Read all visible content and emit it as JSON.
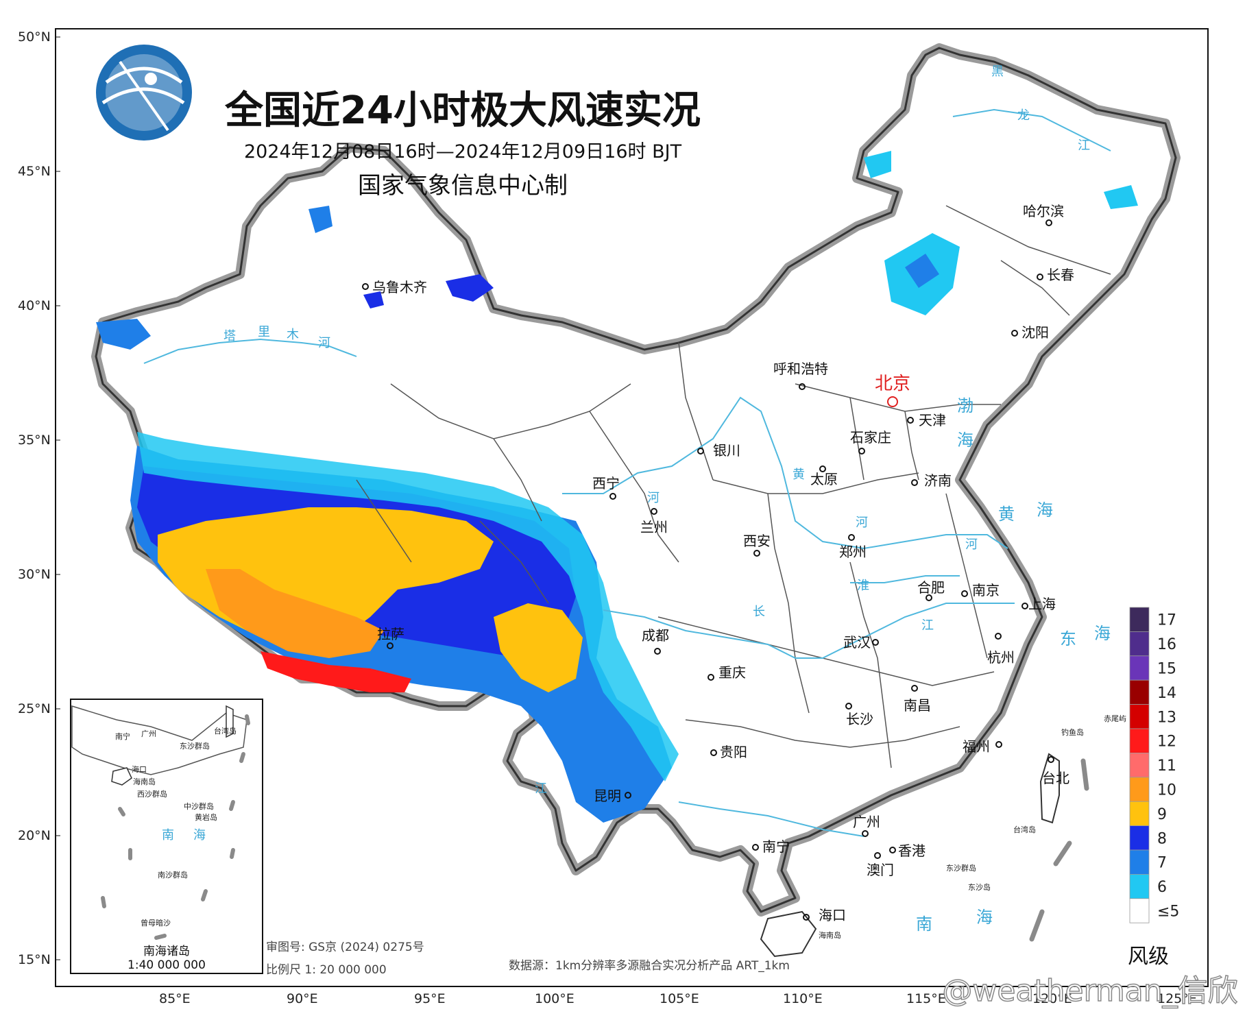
{
  "title": "全国近24小时极大风速实况",
  "subtitle": "2024年12月08日16时—2024年12月09日16时 BJT",
  "producer": "国家气象信息中心制",
  "latitude_ticks": [
    "50°N",
    "45°N",
    "40°N",
    "35°N",
    "30°N",
    "25°N",
    "20°N",
    "15°N"
  ],
  "longitude_ticks": [
    "85°E",
    "90°E",
    "95°E",
    "100°E",
    "105°E",
    "110°E",
    "115°E",
    "120°E",
    "125°E"
  ],
  "cities": [
    {
      "name": "乌鲁木齐",
      "id": "urumqi"
    },
    {
      "name": "哈尔滨",
      "id": "harbin"
    },
    {
      "name": "长春",
      "id": "changchun"
    },
    {
      "name": "沈阳",
      "id": "shenyang"
    },
    {
      "name": "呼和浩特",
      "id": "hohhot"
    },
    {
      "name": "北京",
      "id": "beijing"
    },
    {
      "name": "天津",
      "id": "tianjin"
    },
    {
      "name": "石家庄",
      "id": "shijiazhuang"
    },
    {
      "name": "银川",
      "id": "yinchuan"
    },
    {
      "name": "太原",
      "id": "taiyuan"
    },
    {
      "name": "济南",
      "id": "jinan"
    },
    {
      "name": "西宁",
      "id": "xining"
    },
    {
      "name": "兰州",
      "id": "lanzhou"
    },
    {
      "name": "西安",
      "id": "xian"
    },
    {
      "name": "郑州",
      "id": "zhengzhou"
    },
    {
      "name": "合肥",
      "id": "hefei"
    },
    {
      "name": "南京",
      "id": "nanjing"
    },
    {
      "name": "上海",
      "id": "shanghai"
    },
    {
      "name": "拉萨",
      "id": "lhasa"
    },
    {
      "name": "成都",
      "id": "chengdu"
    },
    {
      "name": "武汉",
      "id": "wuhan"
    },
    {
      "name": "杭州",
      "id": "hangzhou"
    },
    {
      "name": "重庆",
      "id": "chongqing"
    },
    {
      "name": "长沙",
      "id": "changsha"
    },
    {
      "name": "南昌",
      "id": "nanchang"
    },
    {
      "name": "贵阳",
      "id": "guiyang"
    },
    {
      "name": "福州",
      "id": "fuzhou"
    },
    {
      "name": "台北",
      "id": "taipei"
    },
    {
      "name": "昆明",
      "id": "kunming"
    },
    {
      "name": "广州",
      "id": "guangzhou"
    },
    {
      "name": "南宁",
      "id": "nanning"
    },
    {
      "name": "香港",
      "id": "hongkong"
    },
    {
      "name": "澳门",
      "id": "macau"
    },
    {
      "name": "海口",
      "id": "haikou"
    }
  ],
  "seas": [
    "渤",
    "海",
    "黄",
    "海",
    "东",
    "海",
    "南",
    "海"
  ],
  "rivers": [
    "塔",
    "里",
    "木",
    "河",
    "黑",
    "龙",
    "江",
    "黄",
    "河",
    "河",
    "长",
    "江",
    "淮",
    "河",
    "江"
  ],
  "islands": [
    "钓鱼岛",
    "赤尾屿",
    "台湾岛",
    "东沙群岛",
    "东沙岛",
    "海南岛"
  ],
  "inset": {
    "title": "南海诸岛",
    "scale": "1:40 000 000",
    "labels": [
      "台湾岛",
      "东沙群岛",
      "西沙群岛",
      "中沙群岛",
      "黄岩岛",
      "南沙群岛",
      "曾母暗沙",
      "南宁",
      "广州",
      "海口",
      "海南岛"
    ],
    "sea_chars": [
      "南",
      "海"
    ]
  },
  "map_review_no": "审图号: GS京 (2024) 0275号",
  "map_scale": "比例尺  1: 20 000 000",
  "data_source": "数据源：1km分辨率多源融合实况分析产品 ART_1km",
  "legend": {
    "title": "风级",
    "levels": [
      {
        "label": "17",
        "color": "#3d2a5c"
      },
      {
        "label": "16",
        "color": "#4f2d8c"
      },
      {
        "label": "15",
        "color": "#6a35b8"
      },
      {
        "label": "14",
        "color": "#990000"
      },
      {
        "label": "13",
        "color": "#d40000"
      },
      {
        "label": "12",
        "color": "#ff1a1a"
      },
      {
        "label": "11",
        "color": "#ff6b6b"
      },
      {
        "label": "10",
        "color": "#ff9a1a"
      },
      {
        "label": "9",
        "color": "#ffc20e"
      },
      {
        "label": "8",
        "color": "#1a2ee6"
      },
      {
        "label": "7",
        "color": "#1f7fe8"
      },
      {
        "label": "6",
        "color": "#21c8f2"
      },
      {
        "label": "≤5",
        "color": "#ffffff"
      }
    ]
  },
  "watermark": "@weatherman_信欣",
  "colors": {
    "border_gray": "#8a8a8a",
    "province_line": "#555555",
    "river": "#4fb8de",
    "sea_text": "#3aa7d6",
    "capital": "#e02020"
  }
}
